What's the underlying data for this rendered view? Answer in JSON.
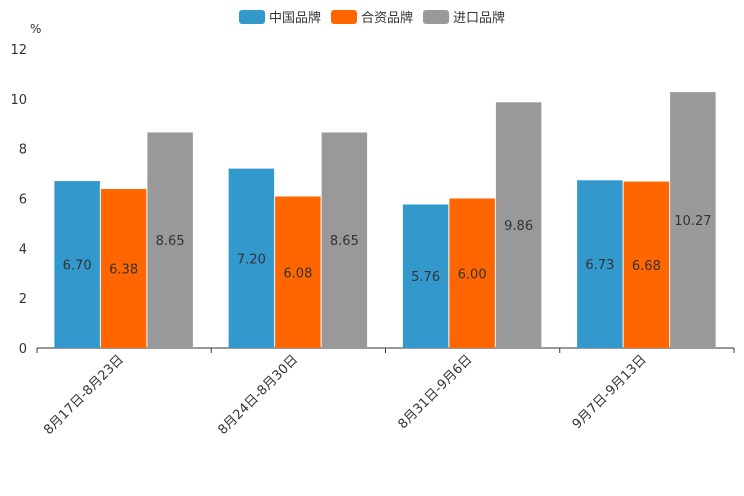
{
  "chart_data": {
    "type": "bar",
    "title": "",
    "unit": "%",
    "xlabel": "",
    "ylabel": "%",
    "ylim": [
      0,
      12
    ],
    "yticks": [
      0,
      2,
      4,
      6,
      8,
      10,
      12
    ],
    "legend_position": "top-center",
    "categories": [
      "8月17日-8月23日",
      "8月24日-8月30日",
      "8月31日-9月6日",
      "9月7日-9月13日"
    ],
    "series": [
      {
        "name": "中国品牌",
        "color": "#3399cc",
        "values": [
          6.7,
          7.2,
          5.76,
          6.73
        ]
      },
      {
        "name": "合资品牌",
        "color": "#ff6600",
        "values": [
          6.38,
          6.08,
          6.0,
          6.68
        ]
      },
      {
        "name": "进口品牌",
        "color": "#999999",
        "values": [
          8.65,
          8.65,
          9.86,
          10.27
        ]
      }
    ]
  }
}
